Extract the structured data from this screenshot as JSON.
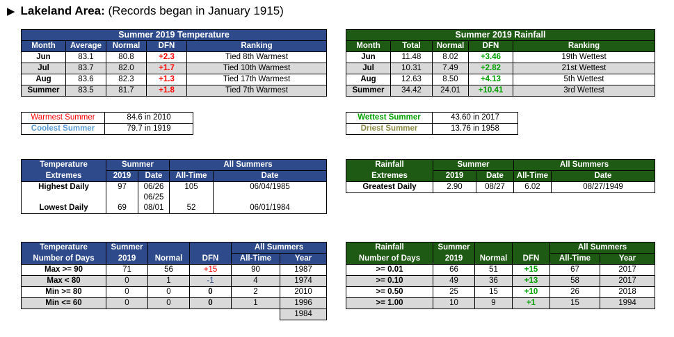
{
  "header": {
    "title_bold": "Lakeland Area:",
    "title_rest": " (Records began in January 1915)"
  },
  "temp_summary": {
    "title": "Summer 2019 Temperature",
    "columns": [
      "Month",
      "Average",
      "Normal",
      "DFN",
      "Ranking"
    ],
    "rows": [
      [
        "Jun",
        "83.1",
        "80.8",
        "+2.3",
        "Tied 8th Warmest"
      ],
      [
        "Jul",
        "83.7",
        "82.0",
        "+1.7",
        "Tied 10th Warmest"
      ],
      [
        "Aug",
        "83.6",
        "82.3",
        "+1.3",
        "Tied 17th Warmest"
      ],
      [
        "Summer",
        "83.5",
        "81.7",
        "+1.8",
        "Tied 7th Warmest"
      ]
    ]
  },
  "rain_summary": {
    "title": "Summer 2019 Rainfall",
    "columns": [
      "Month",
      "Total",
      "Normal",
      "DFN",
      "Ranking"
    ],
    "rows": [
      [
        "Jun",
        "11.48",
        "8.02",
        "+3.46",
        "19th Wettest"
      ],
      [
        "Jul",
        "10.31",
        "7.49",
        "+2.82",
        "21st Wettest"
      ],
      [
        "Aug",
        "12.63",
        "8.50",
        "+4.13",
        "5th Wettest"
      ],
      [
        "Summer",
        "34.42",
        "24.01",
        "+10.41",
        "3rd Wettest"
      ]
    ]
  },
  "temp_records": [
    {
      "label": "Warmest Summer",
      "value": "84.6 in 2010"
    },
    {
      "label": "Coolest Summer",
      "value": "79.7 in 1919"
    }
  ],
  "rain_records": [
    {
      "label": "Wettest Summer",
      "value": "43.60 in 2017"
    },
    {
      "label": "Driest Summer",
      "value": "13.76 in 1958"
    }
  ],
  "temp_extremes": {
    "head1": "Temperature",
    "head2": "Extremes",
    "summer": "Summer",
    "all_summers": "All Summers",
    "col_2019": "2019",
    "col_date": "Date",
    "col_alltime": "All-Time",
    "col_date2": "Date",
    "highest": {
      "label": "Highest Daily",
      "val": "97",
      "date1": "06/26",
      "date2": "06/25",
      "alltime": "105",
      "alldate": "06/04/1985"
    },
    "lowest": {
      "label": "Lowest Daily",
      "val": "69",
      "date": "08/01",
      "alltime": "52",
      "alldate": "06/01/1984"
    }
  },
  "rain_extremes": {
    "head1": "Rainfall",
    "head2": "Extremes",
    "summer": "Summer",
    "all_summers": "All Summers",
    "col_2019": "2019",
    "col_date": "Date",
    "col_alltime": "All-Time",
    "col_date2": "Date",
    "greatest": {
      "label": "Greatest Daily",
      "val": "2.90",
      "date": "08/27",
      "alltime": "6.02",
      "alldate": "08/27/1949"
    }
  },
  "temp_days": {
    "head1": "Temperature",
    "head2": "Number of Days",
    "summer": "Summer",
    "all_summers": "All Summers",
    "cols": [
      "2019",
      "Normal",
      "DFN",
      "All-Time",
      "Year"
    ],
    "rows": [
      [
        "Max >= 90",
        "71",
        "56",
        "+15",
        "90",
        "1987"
      ],
      [
        "Max < 80",
        "0",
        "1",
        "-1",
        "4",
        "1974"
      ],
      [
        "Min >= 80",
        "0",
        "0",
        "0",
        "2",
        "2010"
      ],
      [
        "Min <= 60",
        "0",
        "0",
        "0",
        "1",
        "1996"
      ]
    ],
    "extra_year": "1984"
  },
  "rain_days": {
    "head1": "Rainfall",
    "head2": "Number of Days",
    "summer": "Summer",
    "all_summers": "All Summers",
    "cols": [
      "2019",
      "Normal",
      "DFN",
      "All-Time",
      "Year"
    ],
    "rows": [
      [
        ">= 0.01",
        "66",
        "51",
        "+15",
        "67",
        "2017"
      ],
      [
        ">= 0.10",
        "49",
        "36",
        "+13",
        "58",
        "2017"
      ],
      [
        ">= 0.50",
        "25",
        "15",
        "+10",
        "26",
        "2018"
      ],
      [
        ">= 1.00",
        "10",
        "9",
        "+1",
        "15",
        "1994"
      ]
    ]
  }
}
